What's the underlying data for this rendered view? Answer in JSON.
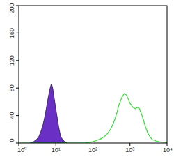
{
  "chart_data": {
    "type": "line",
    "log": "x",
    "xlim": [
      1,
      10000
    ],
    "xticks": [
      {
        "value": 1,
        "label": "10⁰"
      },
      {
        "value": 10,
        "label": "10¹"
      },
      {
        "value": 100,
        "label": "10²"
      },
      {
        "value": 1000,
        "label": "10³"
      },
      {
        "value": 10000,
        "label": "10⁴"
      }
    ],
    "ylim": [
      0,
      200
    ],
    "yticks": [
      0,
      40,
      80,
      120,
      160,
      200
    ],
    "series": [
      {
        "type": "area",
        "color": "#6a2fc4",
        "x": [
          2,
          2.5,
          3,
          3.5,
          4,
          4.5,
          5,
          5.5,
          6,
          6.5,
          7,
          7.5,
          8,
          8.5,
          9,
          10,
          11,
          12,
          13,
          14,
          16,
          18,
          20
        ],
        "values": [
          0,
          2,
          5,
          10,
          18,
          27,
          38,
          50,
          62,
          72,
          80,
          86,
          83,
          76,
          66,
          50,
          36,
          23,
          14,
          8,
          4,
          1,
          0
        ]
      },
      {
        "type": "line",
        "color": "#33dd33",
        "x": [
          1,
          10,
          30,
          60,
          80,
          100,
          130,
          160,
          200,
          250,
          300,
          350,
          400,
          450,
          500,
          600,
          700,
          800,
          900,
          1000,
          1200,
          1400,
          1600,
          1800,
          2000,
          2300,
          2600,
          3000,
          3500,
          4000,
          5000,
          6000,
          8000,
          10000
        ],
        "values": [
          0,
          0,
          0,
          0,
          1,
          2,
          4,
          6,
          9,
          14,
          20,
          28,
          36,
          45,
          55,
          66,
          72,
          70,
          64,
          58,
          52,
          50,
          52,
          50,
          44,
          34,
          24,
          15,
          9,
          5,
          3,
          2,
          1,
          1
        ]
      }
    ]
  }
}
